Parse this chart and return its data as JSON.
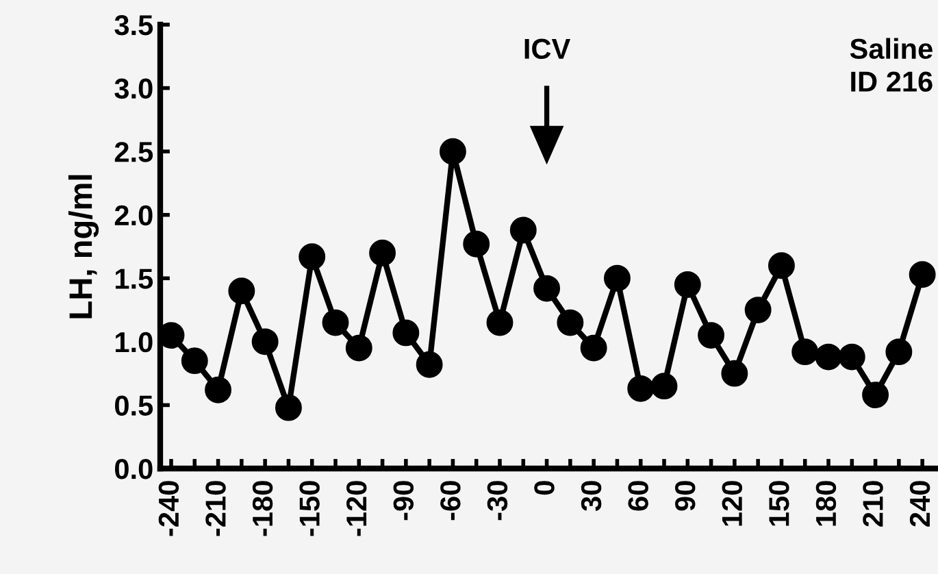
{
  "chart_data": {
    "type": "line",
    "ylabel": "LH, ng/ml",
    "x": [
      -240,
      -225,
      -210,
      -195,
      -180,
      -165,
      -150,
      -135,
      -120,
      -105,
      -90,
      -75,
      -60,
      -45,
      -30,
      -15,
      0,
      15,
      30,
      45,
      60,
      75,
      90,
      105,
      120,
      135,
      150,
      165,
      180,
      195,
      210,
      225,
      240
    ],
    "series": [
      {
        "color": "#000000",
        "values": [
          1.05,
          0.85,
          0.62,
          1.4,
          1.0,
          0.48,
          1.67,
          1.15,
          0.95,
          1.7,
          1.07,
          0.82,
          2.5,
          1.77,
          1.15,
          1.88,
          1.42,
          1.15,
          0.95,
          1.5,
          0.63,
          0.65,
          1.45,
          1.05,
          0.75,
          1.25,
          1.6,
          0.92,
          0.88,
          0.88,
          0.58,
          0.92,
          1.53
        ]
      }
    ],
    "xlim": [
      -247,
      250
    ],
    "xticks": [
      -240,
      {
        "value": -225,
        "label": null
      },
      -210,
      {
        "value": -195,
        "label": null
      },
      -180,
      {
        "value": -165,
        "label": null
      },
      -150,
      {
        "value": -135,
        "label": null
      },
      -120,
      {
        "value": -105,
        "label": null
      },
      -90,
      {
        "value": -75,
        "label": null
      },
      -60,
      {
        "value": -45,
        "label": null
      },
      -30,
      {
        "value": -15,
        "label": null
      },
      0,
      {
        "value": 15,
        "label": null
      },
      30,
      {
        "value": 45,
        "label": null
      },
      60,
      {
        "value": 75,
        "label": null
      },
      90,
      {
        "value": 105,
        "label": null
      },
      120,
      {
        "value": 135,
        "label": null
      },
      150,
      {
        "value": 165,
        "label": null
      },
      180,
      {
        "value": 195,
        "label": null
      },
      210,
      {
        "value": 225,
        "label": null
      },
      240
    ],
    "ylim": [
      0,
      3.5
    ],
    "yticks": [
      {
        "value": 0,
        "label": "0.0"
      },
      {
        "value": 0.5,
        "label": "0.5"
      },
      {
        "value": 1,
        "label": "1.0"
      },
      {
        "value": 1.5,
        "label": "1.5"
      },
      {
        "value": 2,
        "label": "2.0"
      },
      {
        "value": 2.5,
        "label": "2.5"
      },
      {
        "value": 3,
        "label": "3.0"
      },
      {
        "value": 3.5,
        "label": "3.5"
      }
    ],
    "annotations": [
      "ICV",
      "Saline\nID 216"
    ],
    "marker": "circle",
    "line_style": "solid",
    "grid": false,
    "legend": false
  }
}
